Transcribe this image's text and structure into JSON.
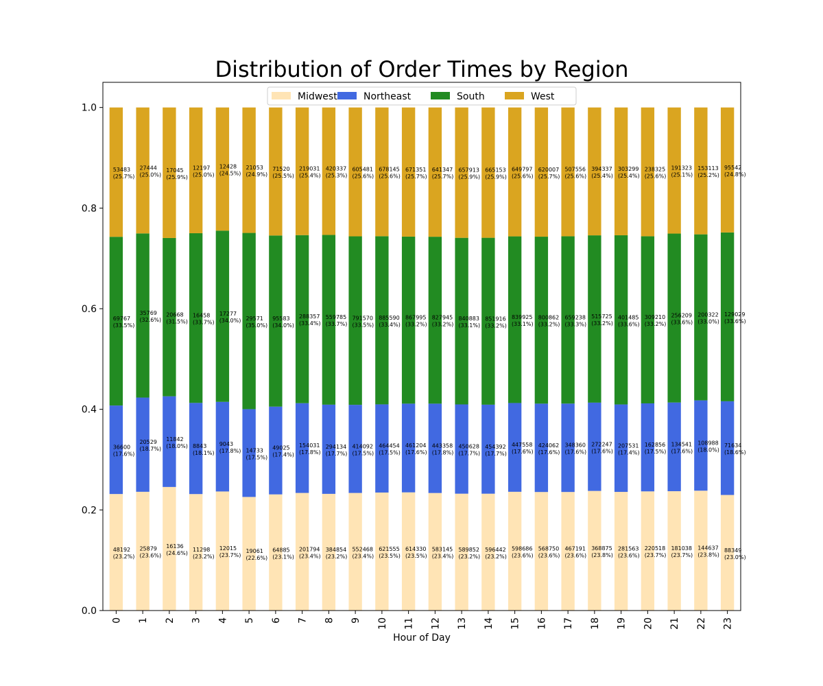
{
  "chart_data": {
    "type": "bar",
    "stacked": true,
    "normalized": true,
    "title": "Distribution of Order Times by Region",
    "xlabel": "Hour of Day",
    "ylabel": "",
    "ylim": [
      0,
      1.05
    ],
    "yticks": [
      "0.0",
      "0.2",
      "0.4",
      "0.6",
      "0.8",
      "1.0"
    ],
    "legend_position": "top-center",
    "grid": false,
    "categories": [
      "0",
      "1",
      "2",
      "3",
      "4",
      "5",
      "6",
      "7",
      "8",
      "9",
      "10",
      "11",
      "12",
      "13",
      "14",
      "15",
      "16",
      "17",
      "18",
      "19",
      "20",
      "21",
      "22",
      "23"
    ],
    "series": [
      {
        "name": "Midwest",
        "color": "#ffe4b5",
        "counts": [
          48192,
          25879,
          16136,
          11298,
          12015,
          19061,
          64885,
          201794,
          384854,
          552468,
          621555,
          614330,
          583145,
          589852,
          596442,
          598686,
          568750,
          467191,
          368875,
          281563,
          220518,
          181038,
          144637,
          88349
        ],
        "percent_labels": [
          "23.2%",
          "23.6%",
          "24.6%",
          "23.2%",
          "23.7%",
          "22.6%",
          "23.1%",
          "23.4%",
          "23.2%",
          "23.4%",
          "23.5%",
          "23.5%",
          "23.4%",
          "23.2%",
          "23.2%",
          "23.6%",
          "23.6%",
          "23.6%",
          "23.8%",
          "23.6%",
          "23.7%",
          "23.7%",
          "23.8%",
          "23.0%"
        ]
      },
      {
        "name": "Northeast",
        "color": "#4169e1",
        "counts": [
          36600,
          20529,
          11842,
          8843,
          9043,
          14733,
          49025,
          154031,
          294134,
          414092,
          464454,
          461204,
          443358,
          450628,
          454392,
          447558,
          424062,
          348360,
          272247,
          207531,
          162856,
          134541,
          108988,
          71634
        ],
        "percent_labels": [
          "17.6%",
          "18.7%",
          "18.0%",
          "18.1%",
          "17.8%",
          "17.5%",
          "17.4%",
          "17.8%",
          "17.7%",
          "17.5%",
          "17.5%",
          "17.6%",
          "17.8%",
          "17.7%",
          "17.7%",
          "17.6%",
          "17.6%",
          "17.6%",
          "17.6%",
          "17.4%",
          "17.5%",
          "17.6%",
          "18.0%",
          "18.6%"
        ]
      },
      {
        "name": "South",
        "color": "#228b22",
        "counts": [
          69767,
          35769,
          20668,
          16458,
          17277,
          29571,
          95583,
          288357,
          559785,
          791570,
          885590,
          867995,
          827945,
          840883,
          851916,
          839925,
          800862,
          659238,
          515725,
          401485,
          309210,
          256209,
          200322,
          129029
        ],
        "percent_labels": [
          "33.5%",
          "32.6%",
          "31.5%",
          "33.7%",
          "34.0%",
          "35.0%",
          "34.0%",
          "33.4%",
          "33.7%",
          "33.5%",
          "33.4%",
          "33.2%",
          "33.2%",
          "33.1%",
          "33.2%",
          "33.1%",
          "33.2%",
          "33.3%",
          "33.2%",
          "33.6%",
          "33.2%",
          "33.6%",
          "33.0%",
          "33.6%"
        ]
      },
      {
        "name": "West",
        "color": "#daa520",
        "counts": [
          53483,
          27444,
          17045,
          12197,
          12428,
          21053,
          71520,
          219031,
          420337,
          605481,
          678145,
          671351,
          641347,
          657913,
          665153,
          649797,
          620007,
          507556,
          394337,
          303299,
          238325,
          191323,
          153113,
          95542
        ],
        "percent_labels": [
          "25.7%",
          "25.0%",
          "25.9%",
          "25.0%",
          "24.5%",
          "24.9%",
          "25.5%",
          "25.4%",
          "25.3%",
          "25.6%",
          "25.6%",
          "25.7%",
          "25.7%",
          "25.9%",
          "25.9%",
          "25.6%",
          "25.7%",
          "25.6%",
          "25.4%",
          "25.4%",
          "25.6%",
          "25.1%",
          "25.2%",
          "24.8%"
        ]
      }
    ]
  }
}
